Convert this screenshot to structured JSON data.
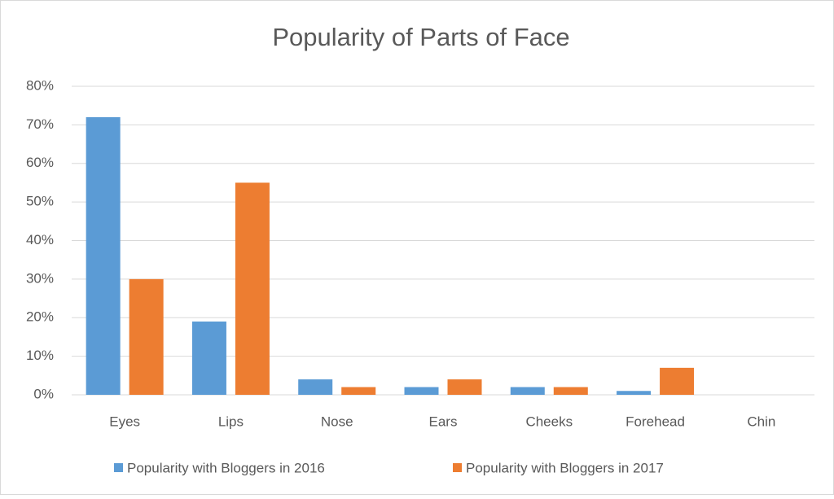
{
  "chart_data": {
    "type": "bar",
    "title": "Popularity of Parts of Face",
    "categories": [
      "Eyes",
      "Lips",
      "Nose",
      "Ears",
      "Cheeks",
      "Forehead",
      "Chin"
    ],
    "series": [
      {
        "name": "Popularity with Bloggers in 2016",
        "color": "#5b9bd5",
        "values": [
          72,
          19,
          4,
          2,
          2,
          1,
          0
        ]
      },
      {
        "name": "Popularity with Bloggers in 2017",
        "color": "#ed7d31",
        "values": [
          30,
          55,
          2,
          4,
          2,
          7,
          0
        ]
      }
    ],
    "ylim": [
      0,
      80
    ],
    "yticks": [
      {
        "value": 0,
        "label": "0%"
      },
      {
        "value": 10,
        "label": "10%"
      },
      {
        "value": 20,
        "label": "20%"
      },
      {
        "value": 30,
        "label": "30%"
      },
      {
        "value": 40,
        "label": "40%"
      },
      {
        "value": 50,
        "label": "50%"
      },
      {
        "value": 60,
        "label": "60%"
      },
      {
        "value": 70,
        "label": "70%"
      },
      {
        "value": 80,
        "label": "80%"
      }
    ],
    "grid": true,
    "legend": "bottom"
  }
}
